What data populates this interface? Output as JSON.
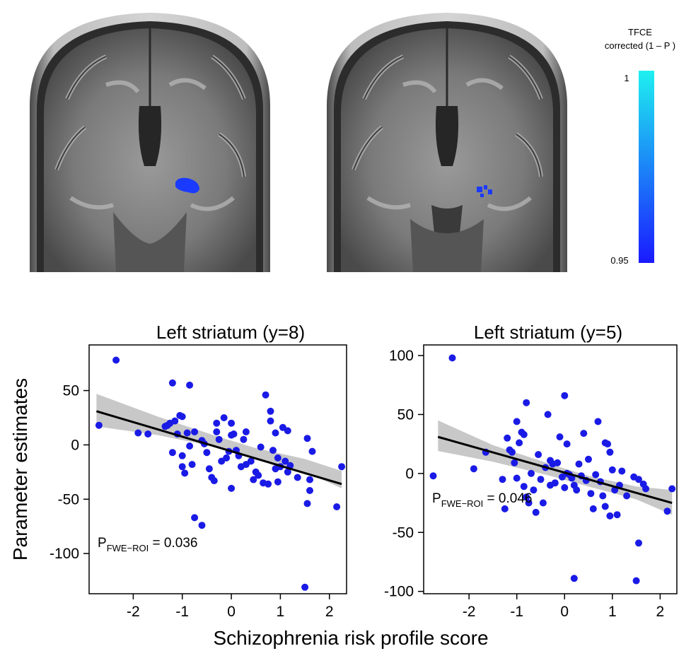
{
  "colorbar": {
    "title_line1": "TFCE",
    "title_line2": "corrected (1 – P )",
    "max_label": "1",
    "min_label": "0.95",
    "color_top": "#1ef0f0",
    "color_bottom": "#1a1aff"
  },
  "ylabel": "Parameter estimates",
  "xlabel": "Schizophrenia risk profile score",
  "point_color": "#1a1ae6",
  "fit_color": "#000000",
  "band_color": "#c8c8c8",
  "chart_data": [
    {
      "type": "scatter",
      "title": "Left striatum (y=8)",
      "p_prefix": "P",
      "p_sub": "FWE−ROI",
      "p_value": " = 0.036",
      "xlim": [
        -2.9,
        2.35
      ],
      "ylim": [
        -137,
        92
      ],
      "xticks": [
        -2,
        -1,
        0,
        1,
        2
      ],
      "yticks": [
        50,
        0,
        -50,
        -100
      ],
      "fit": {
        "x": [
          -2.75,
          2.25
        ],
        "y": [
          31,
          -36
        ]
      },
      "band": {
        "x": [
          -2.75,
          -1.5,
          -0.3,
          0.5,
          1.5,
          2.25
        ],
        "lower": [
          17,
          9,
          -2,
          -12,
          -25,
          -40
        ],
        "upper": [
          47,
          26,
          8,
          -3,
          -13,
          -24
        ]
      },
      "points": [
        [
          -2.7,
          18
        ],
        [
          -2.35,
          78
        ],
        [
          -1.9,
          11
        ],
        [
          -1.7,
          10
        ],
        [
          -1.35,
          17
        ],
        [
          -1.3,
          18
        ],
        [
          -1.25,
          20
        ],
        [
          -1.2,
          57
        ],
        [
          -1.15,
          22
        ],
        [
          -1.2,
          -7
        ],
        [
          -1.1,
          10
        ],
        [
          -1.05,
          27
        ],
        [
          -1.0,
          26
        ],
        [
          -1.0,
          -10
        ],
        [
          -1.0,
          -20
        ],
        [
          -0.9,
          11
        ],
        [
          -0.85,
          55
        ],
        [
          -0.85,
          -1
        ],
        [
          -0.8,
          -18
        ],
        [
          -0.75,
          12
        ],
        [
          -0.6,
          4
        ],
        [
          -0.55,
          1
        ],
        [
          -0.5,
          -7
        ],
        [
          -0.45,
          -22
        ],
        [
          -0.4,
          -30
        ],
        [
          -0.35,
          -33
        ],
        [
          -0.3,
          12
        ],
        [
          -0.3,
          20
        ],
        [
          -0.25,
          5
        ],
        [
          -0.2,
          -15
        ],
        [
          -0.15,
          25
        ],
        [
          -0.1,
          -12
        ],
        [
          -0.05,
          -6
        ],
        [
          0.0,
          20
        ],
        [
          0.0,
          9
        ],
        [
          0.0,
          -40
        ],
        [
          0.05,
          10
        ],
        [
          0.1,
          -5
        ],
        [
          0.15,
          -10
        ],
        [
          0.2,
          -20
        ],
        [
          0.25,
          5
        ],
        [
          0.3,
          -18
        ],
        [
          0.3,
          12
        ],
        [
          0.4,
          -15
        ],
        [
          0.45,
          -32
        ],
        [
          0.5,
          -25
        ],
        [
          0.55,
          -28
        ],
        [
          0.6,
          -2
        ],
        [
          0.65,
          -35
        ],
        [
          0.7,
          46
        ],
        [
          0.75,
          -36
        ],
        [
          0.8,
          22
        ],
        [
          0.8,
          31
        ],
        [
          0.85,
          -5
        ],
        [
          0.9,
          -22
        ],
        [
          0.95,
          -34
        ],
        [
          0.95,
          -12
        ],
        [
          1.0,
          -20
        ],
        [
          1.05,
          16
        ],
        [
          1.1,
          -15
        ],
        [
          1.15,
          -25
        ],
        [
          1.2,
          -19
        ],
        [
          1.35,
          -30
        ],
        [
          1.5,
          -131
        ],
        [
          1.55,
          -54
        ],
        [
          1.55,
          6
        ],
        [
          1.6,
          -42
        ],
        [
          1.6,
          -32
        ],
        [
          1.65,
          -6
        ],
        [
          2.15,
          -57
        ],
        [
          2.25,
          -20
        ],
        [
          -0.75,
          -67
        ],
        [
          -0.6,
          -74
        ],
        [
          -0.95,
          -26
        ],
        [
          1.15,
          13
        ],
        [
          0.9,
          11
        ]
      ]
    },
    {
      "type": "scatter",
      "title": "Left striatum (y=5)",
      "p_prefix": "P",
      "p_sub": "FWE−ROI",
      "p_value": " = 0.046",
      "xlim": [
        -2.95,
        2.35
      ],
      "ylim": [
        -102,
        109
      ],
      "xticks": [
        -2,
        -1,
        0,
        1,
        2
      ],
      "yticks": [
        100,
        50,
        0,
        -50,
        -100
      ],
      "fit": {
        "x": [
          -2.65,
          2.25
        ],
        "y": [
          31,
          -25
        ]
      },
      "band": {
        "x": [
          -2.65,
          -1.5,
          -0.3,
          0.5,
          1.5,
          2.25
        ],
        "lower": [
          19,
          10,
          -2,
          -11,
          -22,
          -35
        ],
        "upper": [
          45,
          24,
          8,
          -2,
          -11,
          -14
        ]
      },
      "points": [
        [
          -2.75,
          -2
        ],
        [
          -2.35,
          98
        ],
        [
          -1.9,
          4
        ],
        [
          -1.65,
          18
        ],
        [
          -1.3,
          -5
        ],
        [
          -1.25,
          -30
        ],
        [
          -1.2,
          30
        ],
        [
          -1.15,
          20
        ],
        [
          -1.1,
          18
        ],
        [
          -1.05,
          9
        ],
        [
          -1.0,
          -4
        ],
        [
          -1.0,
          44
        ],
        [
          -0.95,
          26
        ],
        [
          -0.9,
          35
        ],
        [
          -0.85,
          -11
        ],
        [
          -0.85,
          33
        ],
        [
          -0.8,
          60
        ],
        [
          -0.8,
          -20
        ],
        [
          -0.75,
          -25
        ],
        [
          -0.7,
          0
        ],
        [
          -0.65,
          -14
        ],
        [
          -0.6,
          -33
        ],
        [
          -0.55,
          16
        ],
        [
          -0.5,
          -5
        ],
        [
          -0.45,
          -25
        ],
        [
          -0.4,
          5
        ],
        [
          -0.35,
          50
        ],
        [
          -0.3,
          11
        ],
        [
          -0.3,
          -10
        ],
        [
          -0.25,
          8
        ],
        [
          -0.2,
          -8
        ],
        [
          -0.15,
          9
        ],
        [
          -0.1,
          31
        ],
        [
          -0.05,
          -3
        ],
        [
          0.0,
          -12
        ],
        [
          0.0,
          66
        ],
        [
          0.05,
          0
        ],
        [
          0.05,
          25
        ],
        [
          0.1,
          -1
        ],
        [
          0.15,
          -4
        ],
        [
          0.2,
          -10
        ],
        [
          0.2,
          -89
        ],
        [
          0.25,
          -14
        ],
        [
          0.3,
          8
        ],
        [
          0.35,
          -2
        ],
        [
          0.4,
          34
        ],
        [
          0.45,
          -6
        ],
        [
          0.5,
          12
        ],
        [
          0.55,
          -17
        ],
        [
          0.6,
          -30
        ],
        [
          0.65,
          -1
        ],
        [
          0.7,
          44
        ],
        [
          0.75,
          -7
        ],
        [
          0.8,
          -19
        ],
        [
          0.85,
          -28
        ],
        [
          0.85,
          26
        ],
        [
          0.9,
          25
        ],
        [
          0.95,
          -36
        ],
        [
          1.0,
          3
        ],
        [
          1.05,
          -14
        ],
        [
          1.1,
          -35
        ],
        [
          1.15,
          -10
        ],
        [
          1.2,
          2
        ],
        [
          1.3,
          -19
        ],
        [
          1.45,
          -3
        ],
        [
          1.5,
          -91
        ],
        [
          1.55,
          -59
        ],
        [
          1.55,
          -5
        ],
        [
          1.65,
          -9
        ],
        [
          1.7,
          -13
        ],
        [
          2.15,
          -32
        ],
        [
          2.25,
          -13
        ],
        [
          0.95,
          18
        ]
      ]
    }
  ]
}
